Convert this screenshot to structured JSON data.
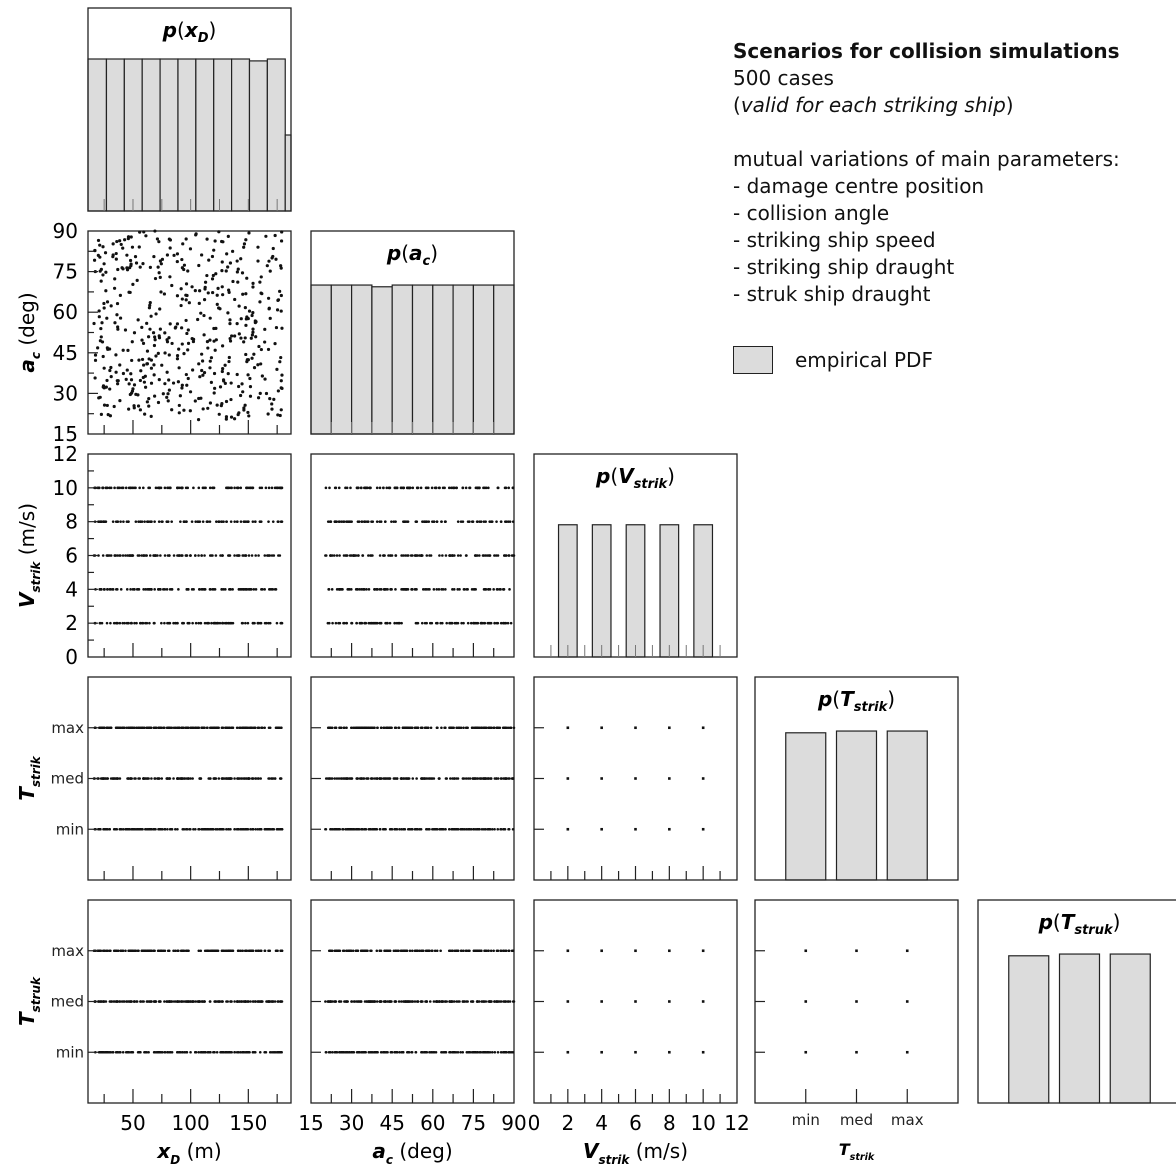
{
  "legend": {
    "title": "Scenarios for collision simulations",
    "cases": "500 cases",
    "note_open": "(",
    "note_italic": "valid for each striking ship",
    "note_close": ")",
    "variations_heading": "mutual variations of main parameters:",
    "variations": [
      "- damage centre position",
      "- collision angle",
      "- striking ship speed",
      "- striking ship draught",
      "- struk ship draught"
    ],
    "pdf_label": "empirical PDF"
  },
  "colors": {
    "bar_fill": "#dcdcdc",
    "frame": "#222222",
    "point": "#111111"
  },
  "chart_data": {
    "type": "scatter-matrix",
    "n_cases": 500,
    "variables": [
      {
        "key": "xD",
        "sym": "x",
        "sub": "D",
        "unit": "(m)",
        "range": [
          11,
          187
        ],
        "ticks": [
          50,
          100,
          150
        ],
        "minor_ticks": [
          25,
          75,
          125,
          175
        ],
        "categorical": false
      },
      {
        "key": "ac",
        "sym": "a",
        "sub": "c",
        "unit": "(deg)",
        "range": [
          15,
          90
        ],
        "ticks": [
          15,
          30,
          45,
          60,
          75,
          90
        ],
        "minor_ticks": [
          22.5,
          37.5,
          52.5,
          67.5,
          82.5
        ],
        "categorical": false
      },
      {
        "key": "Vs",
        "sym": "V",
        "sub": "strik",
        "unit": "(m/s)",
        "range": [
          0,
          12
        ],
        "ticks": [
          0,
          2,
          4,
          6,
          8,
          10,
          12
        ],
        "minor_ticks": [
          1,
          3,
          5,
          7,
          9,
          11
        ],
        "categorical": false
      },
      {
        "key": "Ts",
        "sym": "T",
        "sub": "strik",
        "unit": "",
        "categorical": true,
        "categories": [
          "min",
          "med",
          "max"
        ]
      },
      {
        "key": "Tk",
        "sym": "T",
        "sub": "struk",
        "unit": "",
        "categorical": true,
        "categories": [
          "min",
          "med",
          "max"
        ]
      }
    ],
    "marginal_pdf": [
      {
        "var": "xD",
        "bin_edges": [
          11,
          27,
          42.5,
          58,
          73.5,
          89,
          104.5,
          120,
          135.5,
          151,
          166.5,
          182,
          187
        ],
        "relative_height": [
          0.8,
          0.8,
          0.8,
          0.8,
          0.8,
          0.8,
          0.8,
          0.8,
          0.8,
          0.79,
          0.8,
          0.4
        ]
      },
      {
        "var": "ac",
        "bins": 10,
        "relative_height": [
          0.86,
          0.86,
          0.86,
          0.85,
          0.86,
          0.86,
          0.86,
          0.86,
          0.86,
          0.86
        ]
      },
      {
        "var": "Vs",
        "values": [
          2,
          4,
          6,
          8,
          10
        ],
        "bar_width": 1.1,
        "relative_height": [
          0.8,
          0.8,
          0.8,
          0.8,
          0.8
        ]
      },
      {
        "var": "Ts",
        "values": [
          "min",
          "med",
          "max"
        ],
        "relative_height": [
          0.84,
          0.85,
          0.85
        ]
      },
      {
        "var": "Tk",
        "values": [
          "min",
          "med",
          "max"
        ],
        "relative_height": [
          0.84,
          0.85,
          0.85
        ]
      }
    ]
  }
}
